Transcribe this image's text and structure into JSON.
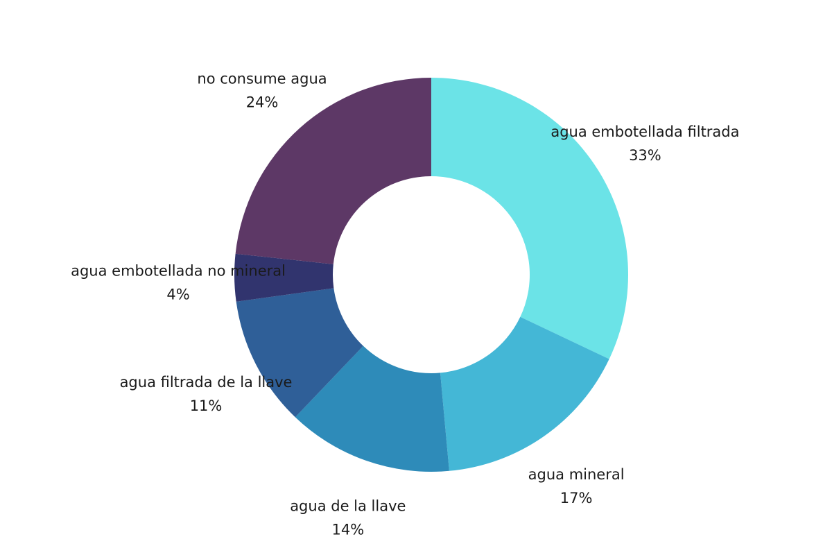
{
  "chart_data": {
    "type": "pie",
    "variant": "donut",
    "title": "",
    "legend": "none",
    "label_style": "outside, name above percentage",
    "categories": [
      "agua embotellada filtrada",
      "agua mineral",
      "agua de la llave",
      "agua filtrada de la llave",
      "agua embotellada no mineral",
      "no consume agua"
    ],
    "values": [
      33,
      17,
      14,
      11,
      4,
      24
    ],
    "value_labels": [
      "33%",
      "17%",
      "14%",
      "11%",
      "4%",
      "24%"
    ],
    "colors": [
      "#6be3e7",
      "#44b7d6",
      "#2e8bb9",
      "#2f5f98",
      "#31346e",
      "#5d3866"
    ]
  }
}
